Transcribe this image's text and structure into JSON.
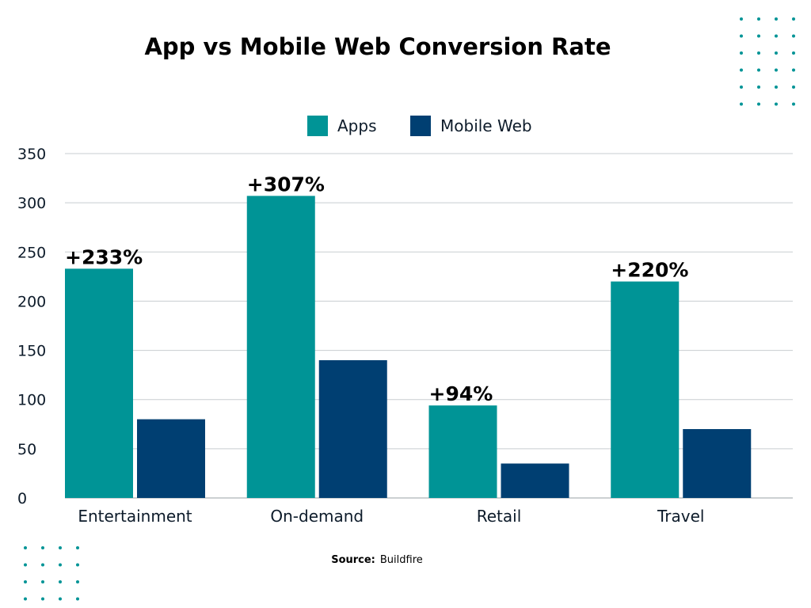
{
  "chart_data": {
    "type": "bar",
    "title": "App vs Mobile Web Conversion Rate",
    "categories": [
      "Entertainment",
      "On-demand",
      "Retail",
      "Travel"
    ],
    "series": [
      {
        "name": "Apps",
        "values": [
          233,
          307,
          94,
          220
        ],
        "color": "#009496"
      },
      {
        "name": "Mobile Web",
        "values": [
          80,
          140,
          35,
          70
        ],
        "color": "#003f72"
      }
    ],
    "data_labels": [
      "+233%",
      "+307%",
      "+94%",
      "+220%"
    ],
    "ylim": [
      0,
      350
    ],
    "yticks": [
      0,
      50,
      100,
      150,
      200,
      250,
      300,
      350
    ],
    "grid": true,
    "legend": "top-center",
    "xlabel": "",
    "ylabel": ""
  },
  "source": {
    "label": "Source:",
    "value": "Buildfire"
  },
  "decor": {
    "dot_color": "#009496",
    "grid_color": "#c8cdd0"
  }
}
